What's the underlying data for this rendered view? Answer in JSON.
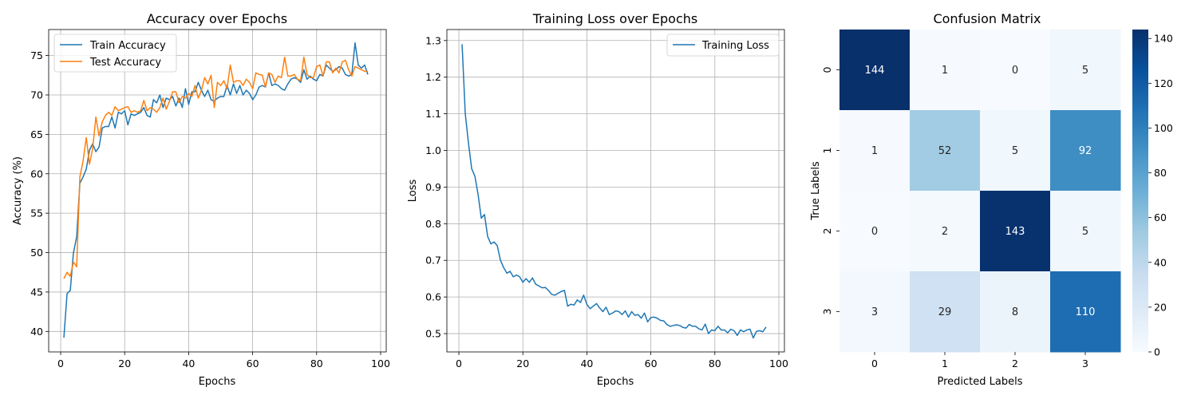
{
  "colors": {
    "train": "#1f77b4",
    "test": "#ff7f0e",
    "loss": "#1f77b4",
    "cmap_low": "#f7fbff",
    "cmap_high": "#08306b"
  },
  "chart_data": [
    {
      "type": "line",
      "title": "Accuracy over Epochs",
      "xlabel": "Epochs",
      "ylabel": "Accuracy (%)",
      "xlim": [
        -3.75,
        101.75
      ],
      "ylim": [
        37.4,
        78.3
      ],
      "xticks": [
        0,
        20,
        40,
        60,
        80,
        100
      ],
      "yticks": [
        40,
        45,
        50,
        55,
        60,
        65,
        70,
        75
      ],
      "grid": true,
      "legend_position": "top-left",
      "x": [
        1,
        2,
        3,
        4,
        5,
        6,
        7,
        8,
        9,
        10,
        11,
        12,
        13,
        14,
        15,
        16,
        17,
        18,
        19,
        20,
        21,
        22,
        23,
        24,
        25,
        26,
        27,
        28,
        29,
        30,
        31,
        32,
        33,
        34,
        35,
        36,
        37,
        38,
        39,
        40,
        41,
        42,
        43,
        44,
        45,
        46,
        47,
        48,
        49,
        50,
        51,
        52,
        53,
        54,
        55,
        56,
        57,
        58,
        59,
        60,
        61,
        62,
        63,
        64,
        65,
        66,
        67,
        68,
        69,
        70,
        71,
        72,
        73,
        74,
        75,
        76,
        77,
        78,
        79,
        80,
        81,
        82,
        83,
        84,
        85,
        86,
        87,
        88,
        89,
        90,
        91,
        92,
        93,
        94,
        95,
        96
      ],
      "series": [
        {
          "name": "Train Accuracy",
          "color_key": "train",
          "values": [
            39.2,
            44.8,
            45.2,
            50.0,
            52.0,
            58.8,
            59.6,
            60.6,
            63.0,
            63.8,
            62.8,
            63.4,
            65.8,
            66.0,
            66.0,
            67.2,
            65.8,
            67.8,
            67.6,
            68.0,
            66.2,
            67.6,
            67.4,
            67.6,
            67.8,
            68.4,
            67.4,
            67.2,
            69.4,
            69.0,
            70.0,
            68.4,
            69.6,
            69.4,
            69.8,
            68.6,
            69.6,
            68.4,
            70.8,
            68.8,
            70.4,
            70.4,
            71.6,
            70.6,
            69.8,
            70.6,
            69.4,
            69.2,
            69.6,
            69.8,
            69.8,
            71.2,
            70.0,
            71.4,
            70.2,
            71.2,
            70.0,
            70.6,
            70.2,
            69.4,
            70.0,
            71.0,
            71.2,
            71.0,
            72.8,
            71.2,
            71.4,
            71.2,
            70.8,
            70.6,
            71.4,
            72.0,
            72.2,
            72.0,
            71.6,
            73.2,
            72.0,
            72.4,
            72.0,
            71.8,
            72.6,
            72.4,
            73.8,
            73.4,
            73.0,
            73.2,
            73.6,
            73.4,
            72.6,
            72.4,
            72.6,
            76.6,
            73.8,
            73.4,
            73.8,
            72.6
          ]
        },
        {
          "name": "Test Accuracy",
          "color_key": "test",
          "values": [
            46.7,
            47.5,
            47.0,
            48.8,
            48.2,
            59.6,
            61.6,
            64.6,
            61.2,
            63.2,
            67.2,
            64.8,
            66.6,
            67.4,
            67.8,
            67.4,
            68.5,
            68.0,
            68.2,
            68.4,
            68.5,
            67.8,
            68.0,
            67.8,
            68.0,
            69.3,
            68.0,
            68.4,
            68.2,
            67.8,
            68.4,
            69.6,
            68.2,
            69.2,
            70.4,
            70.4,
            69.0,
            69.8,
            69.6,
            70.2,
            69.8,
            71.2,
            69.6,
            70.6,
            72.2,
            71.4,
            72.5,
            68.4,
            71.6,
            71.2,
            71.8,
            70.8,
            73.8,
            71.6,
            71.8,
            71.8,
            71.2,
            72.0,
            71.6,
            70.8,
            72.8,
            72.6,
            72.5,
            71.0,
            72.8,
            72.6,
            71.6,
            72.4,
            72.2,
            74.8,
            72.4,
            72.4,
            72.6,
            72.0,
            71.8,
            74.8,
            72.6,
            72.2,
            72.2,
            73.6,
            73.8,
            72.4,
            74.2,
            74.2,
            72.8,
            73.4,
            72.8,
            74.2,
            74.4,
            73.2,
            72.4,
            73.6,
            73.4,
            73.2,
            73.0,
            73.0
          ]
        }
      ]
    },
    {
      "type": "line",
      "title": "Training Loss over Epochs",
      "xlabel": "Epochs",
      "ylabel": "Loss",
      "xlim": [
        -3.75,
        101.75
      ],
      "ylim": [
        0.45,
        1.33
      ],
      "xticks": [
        0,
        20,
        40,
        60,
        80,
        100
      ],
      "yticks": [
        0.5,
        0.6,
        0.7,
        0.8,
        0.9,
        1.0,
        1.1,
        1.2,
        1.3
      ],
      "ytick_labels": [
        "0.5",
        "0.6",
        "0.7",
        "0.8",
        "0.9",
        "1.0",
        "1.1",
        "1.2",
        "1.3"
      ],
      "grid": true,
      "legend_position": "top-right",
      "x": [
        1,
        2,
        3,
        4,
        5,
        6,
        7,
        8,
        9,
        10,
        11,
        12,
        13,
        14,
        15,
        16,
        17,
        18,
        19,
        20,
        21,
        22,
        23,
        24,
        25,
        26,
        27,
        28,
        29,
        30,
        31,
        32,
        33,
        34,
        35,
        36,
        37,
        38,
        39,
        40,
        41,
        42,
        43,
        44,
        45,
        46,
        47,
        48,
        49,
        50,
        51,
        52,
        53,
        54,
        55,
        56,
        57,
        58,
        59,
        60,
        61,
        62,
        63,
        64,
        65,
        66,
        67,
        68,
        69,
        70,
        71,
        72,
        73,
        74,
        75,
        76,
        77,
        78,
        79,
        80,
        81,
        82,
        83,
        84,
        85,
        86,
        87,
        88,
        89,
        90,
        91,
        92,
        93,
        94,
        95,
        96
      ],
      "series": [
        {
          "name": "Training Loss",
          "color_key": "loss",
          "values": [
            1.29,
            1.1,
            1.02,
            0.95,
            0.93,
            0.88,
            0.815,
            0.825,
            0.765,
            0.745,
            0.75,
            0.74,
            0.7,
            0.68,
            0.665,
            0.67,
            0.655,
            0.66,
            0.655,
            0.64,
            0.65,
            0.64,
            0.652,
            0.635,
            0.63,
            0.625,
            0.626,
            0.618,
            0.607,
            0.605,
            0.61,
            0.615,
            0.618,
            0.575,
            0.58,
            0.578,
            0.592,
            0.585,
            0.605,
            0.58,
            0.568,
            0.575,
            0.582,
            0.57,
            0.56,
            0.572,
            0.552,
            0.556,
            0.562,
            0.56,
            0.552,
            0.562,
            0.545,
            0.56,
            0.55,
            0.552,
            0.542,
            0.556,
            0.532,
            0.544,
            0.545,
            0.542,
            0.536,
            0.535,
            0.525,
            0.52,
            0.522,
            0.524,
            0.522,
            0.517,
            0.515,
            0.525,
            0.52,
            0.52,
            0.513,
            0.51,
            0.526,
            0.5,
            0.51,
            0.508,
            0.52,
            0.51,
            0.51,
            0.502,
            0.512,
            0.508,
            0.495,
            0.51,
            0.505,
            0.51,
            0.512,
            0.488,
            0.506,
            0.508,
            0.505,
            0.518
          ]
        }
      ]
    },
    {
      "type": "heatmap",
      "title": "Confusion Matrix",
      "xlabel": "Predicted Labels",
      "ylabel": "True Labels",
      "x_categories": [
        "0",
        "1",
        "2",
        "3"
      ],
      "y_categories": [
        "0",
        "1",
        "2",
        "3"
      ],
      "matrix": [
        [
          144,
          1,
          0,
          5
        ],
        [
          1,
          52,
          5,
          92
        ],
        [
          0,
          2,
          143,
          5
        ],
        [
          3,
          29,
          8,
          110
        ]
      ],
      "colorbar_range": [
        0,
        144
      ],
      "colorbar_ticks": [
        0,
        20,
        40,
        60,
        80,
        100,
        120,
        140
      ]
    }
  ]
}
